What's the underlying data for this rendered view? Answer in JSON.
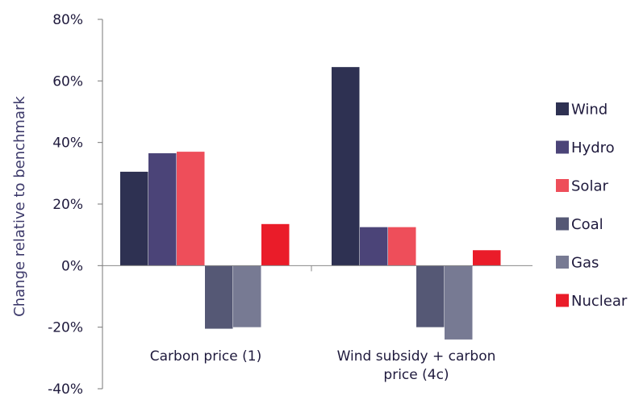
{
  "chart_data": {
    "type": "bar",
    "title": "",
    "xlabel": "",
    "ylabel": "Change relative to benchmark",
    "ylim": [
      -40,
      80
    ],
    "yticks": [
      80,
      60,
      40,
      20,
      0,
      -20,
      -40
    ],
    "ytick_labels": [
      "80%",
      "60%",
      "40%",
      "20%",
      "0%",
      "-20%",
      "-40%"
    ],
    "categories": [
      [
        "Carbon price (1)"
      ],
      [
        "Wind subsidy + carbon",
        "price (4c)"
      ]
    ],
    "series": [
      {
        "name": "Wind",
        "color": "#2e3152",
        "values": [
          30.5,
          64.5
        ]
      },
      {
        "name": "Hydro",
        "color": "#4b4478",
        "values": [
          36.5,
          12.5
        ]
      },
      {
        "name": "Solar",
        "color": "#ee4e5a",
        "values": [
          37,
          12.5
        ]
      },
      {
        "name": "Coal",
        "color": "#555875",
        "values": [
          -20.5,
          -20
        ]
      },
      {
        "name": "Gas",
        "color": "#777a93",
        "values": [
          -20,
          -24
        ]
      },
      {
        "name": "Nuclear",
        "color": "#ea1c29",
        "values": [
          13.5,
          5
        ]
      }
    ],
    "legend": "right",
    "grid": false
  }
}
